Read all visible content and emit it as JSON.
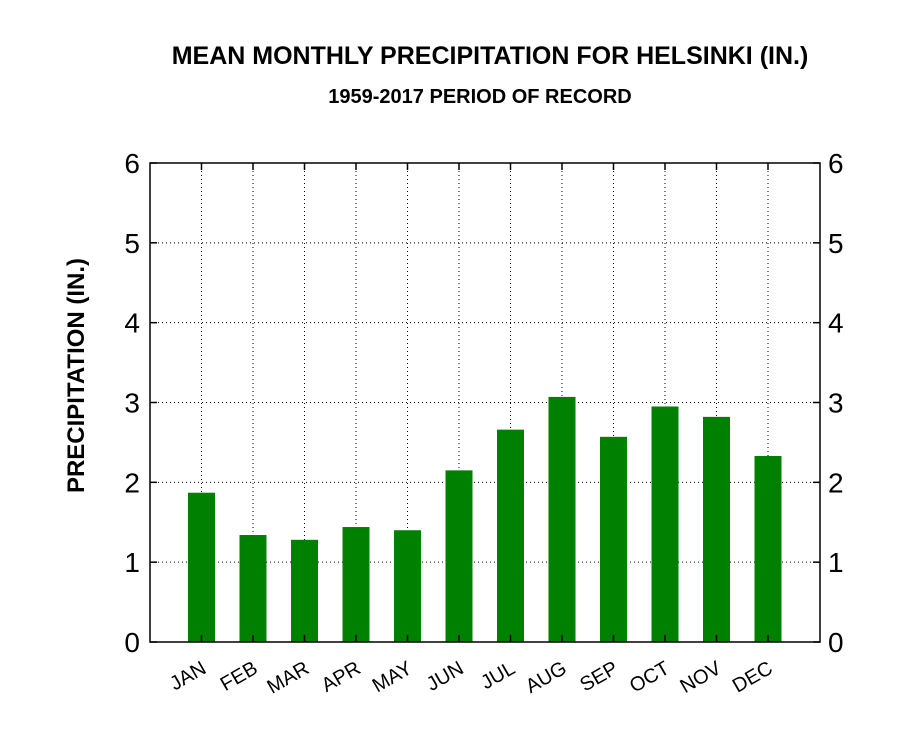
{
  "chart_data": {
    "type": "bar",
    "title": "MEAN MONTHLY PRECIPITATION FOR HELSINKI (IN.)",
    "subtitle": "1959-2017 PERIOD OF RECORD",
    "xlabel": "",
    "ylabel": "PRECIPITATION (IN.)",
    "categories": [
      "JAN",
      "FEB",
      "MAR",
      "APR",
      "MAY",
      "JUN",
      "JUL",
      "AUG",
      "SEP",
      "OCT",
      "NOV",
      "DEC"
    ],
    "values": [
      1.87,
      1.34,
      1.28,
      1.44,
      1.4,
      2.15,
      2.66,
      3.07,
      2.57,
      2.95,
      2.82,
      2.33
    ],
    "ylim": [
      0,
      6
    ],
    "yticks": [
      "0",
      "1",
      "2",
      "3",
      "4",
      "5",
      "6"
    ],
    "grid": true,
    "right_axis_mirrored": true,
    "bar_color": "#008000"
  }
}
